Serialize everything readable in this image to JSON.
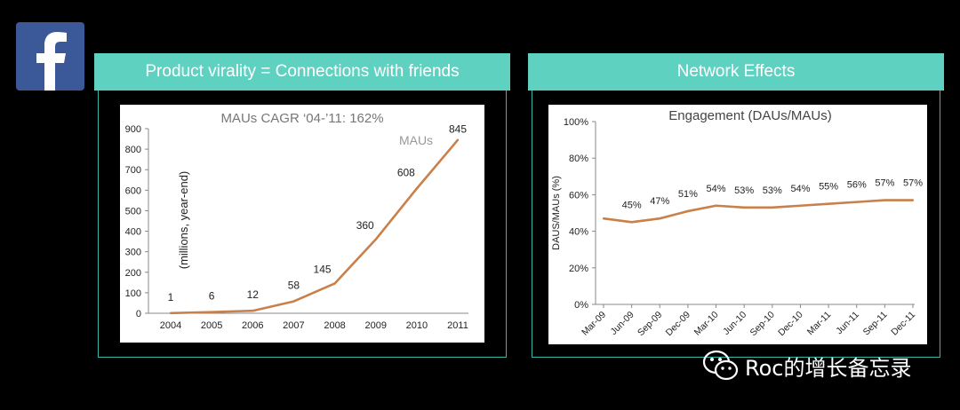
{
  "brand": {
    "logo_letter": "f",
    "logo_color": "#3b5998",
    "accent": "#5fd1c1",
    "line_color": "#c9804a"
  },
  "left_panel": {
    "header": "Product virality = Connections with friends"
  },
  "right_panel": {
    "header": "Network Effects"
  },
  "watermark": {
    "text": "Roc的增长备忘录",
    "icon": "wechat-icon"
  },
  "chart_data": [
    {
      "type": "line",
      "title": "MAUs CAGR ‘04-’11: 162%",
      "series_label": "MAUs",
      "ylabel": "(millions, year-end)",
      "xlabel": "",
      "categories": [
        "2004",
        "2005",
        "2006",
        "2007",
        "2008",
        "2009",
        "2010",
        "2011"
      ],
      "values": [
        1,
        6,
        12,
        58,
        145,
        360,
        608,
        845
      ],
      "data_labels": [
        "1",
        "6",
        "12",
        "58",
        "145",
        "360",
        "608",
        "845"
      ],
      "ylim": [
        0,
        900
      ],
      "yticks": [
        "0",
        "100",
        "200",
        "300",
        "400",
        "500",
        "600",
        "700",
        "800",
        "900"
      ],
      "grid": false
    },
    {
      "type": "line",
      "title": "Engagement (DAUs/MAUs)",
      "ylabel": "DAUS/MAUs (%)",
      "xlabel": "",
      "categories": [
        "Mar-09",
        "Jun-09",
        "Sep-09",
        "Dec-09",
        "Mar-10",
        "Jun-10",
        "Sep-10",
        "Dec-10",
        "Mar-11",
        "Jun-11",
        "Sep-11",
        "Dec-11"
      ],
      "values": [
        47,
        45,
        47,
        51,
        54,
        53,
        53,
        54,
        55,
        56,
        57,
        57
      ],
      "data_labels": [
        "",
        "45%",
        "47%",
        "51%",
        "54%",
        "53%",
        "53%",
        "54%",
        "55%",
        "56%",
        "57%",
        "57%"
      ],
      "ylim": [
        0,
        100
      ],
      "yticks": [
        "0%",
        "20%",
        "40%",
        "60%",
        "80%",
        "100%"
      ],
      "grid": false
    }
  ]
}
